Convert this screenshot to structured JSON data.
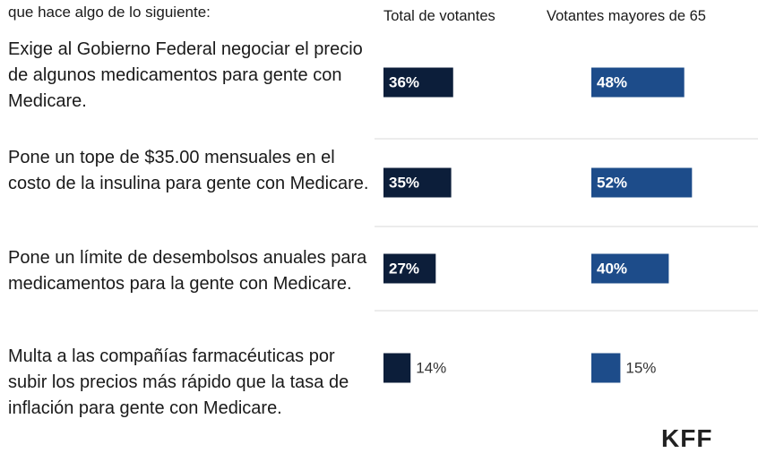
{
  "chart_data": {
    "type": "bar",
    "subtitle": "que hace algo de lo siguiente:",
    "categories": [
      "Exige al Gobierno Federal negociar el precio de algunos medicamentos para gente con Medicare.",
      "Pone un tope de $35.00 mensuales en el costo de la insulina para gente con Medicare.",
      "Pone un límite de desembolsos anuales para medicamentos para la gente con Medicare.",
      "Multa a las compañías farmacéuticas por subir los precios más rápido que la tasa de inflación para gente con Medicare."
    ],
    "series": [
      {
        "name": "Total de votantes",
        "color": "#0c1e3a",
        "values": [
          36,
          35,
          27,
          14
        ],
        "value_labels": [
          "36%",
          "35%",
          "27%",
          "14%"
        ]
      },
      {
        "name": "Votantes mayores de 65",
        "color": "#1d4c8a",
        "values": [
          48,
          52,
          40,
          15
        ],
        "value_labels": [
          "48%",
          "52%",
          "40%",
          "15%"
        ]
      }
    ],
    "logo": "KFF"
  }
}
